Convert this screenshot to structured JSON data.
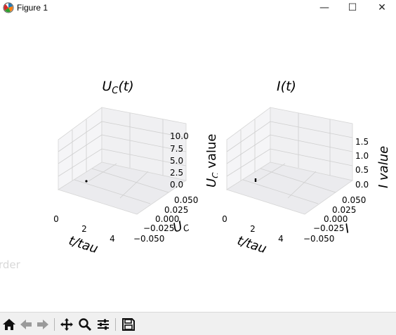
{
  "window": {
    "title": "Figure 1",
    "buttons": {
      "minimize": "—",
      "maximize": "☐",
      "close": "✕"
    }
  },
  "ghost_text": "rder",
  "toolbar": {
    "items": [
      "home-icon",
      "back-arrow-icon",
      "forward-arrow-icon",
      "pan-icon",
      "zoom-icon",
      "configure-subplots-icon",
      "save-icon"
    ]
  },
  "plots": {
    "left": {
      "title_main": "U",
      "title_sub": "C",
      "title_rest": "(t)",
      "xlabel": "t/tau",
      "ylabel": "U",
      "ylabel_sub": "C",
      "zlabel": "U",
      "zlabel_sub": "C",
      "zlabel_rest": " value",
      "x_ticks": [
        "0",
        "2",
        "4"
      ],
      "y_ticks": [
        "0.050",
        "0.025",
        "0.000",
        "−0.025",
        "−0.050"
      ],
      "z_ticks": [
        "10.0",
        "7.5",
        "5.0",
        "2.5",
        "0.0"
      ]
    },
    "right": {
      "title": "I(t)",
      "xlabel": "t/tau",
      "ylabel": "I",
      "zlabel": "I value",
      "x_ticks": [
        "0",
        "2",
        "4"
      ],
      "y_ticks": [
        "0.050",
        "0.025",
        "0.000",
        "−0.025",
        "−0.050"
      ],
      "z_ticks": [
        "1.5",
        "1.0",
        "0.5",
        "0.0"
      ]
    }
  }
}
